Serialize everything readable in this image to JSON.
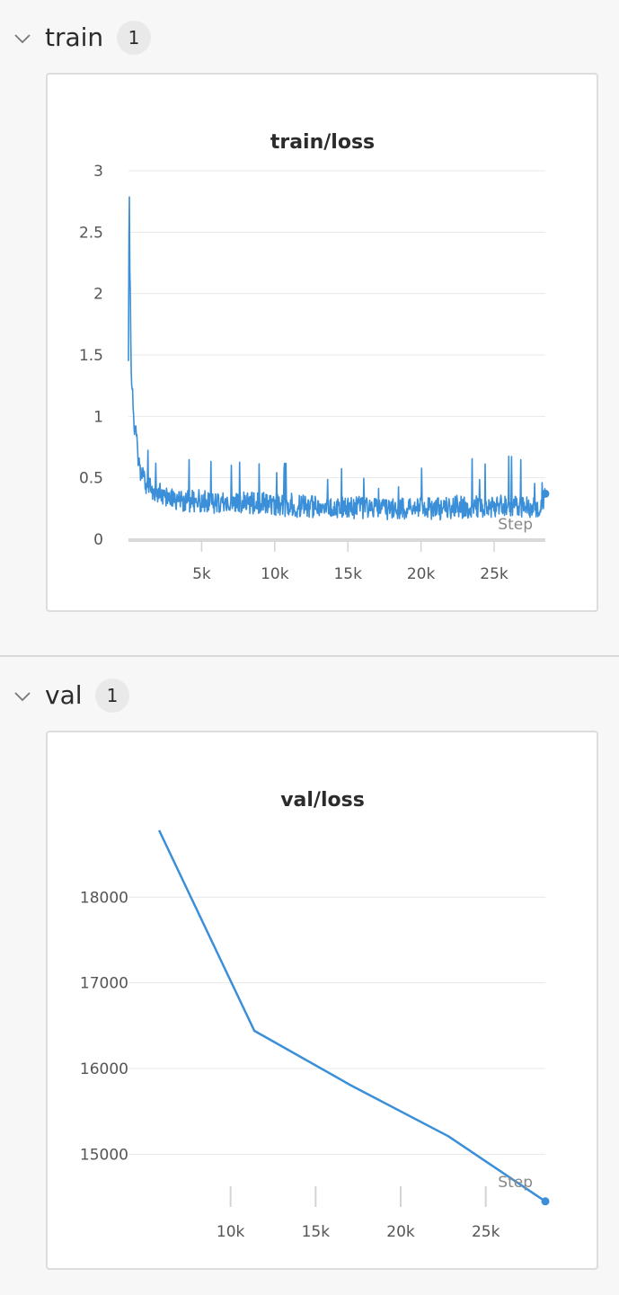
{
  "sections": [
    {
      "title": "train",
      "count": "1"
    },
    {
      "title": "val",
      "count": "1"
    }
  ],
  "chart_data": [
    {
      "type": "line",
      "title": "train/loss",
      "xlabel": "Step",
      "ylabel": "",
      "xlim": [
        0,
        28500
      ],
      "ylim": [
        0,
        3
      ],
      "x_ticks": [
        5000,
        10000,
        15000,
        20000,
        25000
      ],
      "x_tick_labels": [
        "5k",
        "10k",
        "15k",
        "20k",
        "25k"
      ],
      "y_ticks": [
        0,
        0.5,
        1,
        1.5,
        2,
        2.5,
        3
      ],
      "y_tick_labels": [
        "0",
        "0.5",
        "1",
        "1.5",
        "2",
        "2.5",
        "3"
      ],
      "grid": true,
      "color": "#3a8fd8",
      "series": [
        {
          "name": "",
          "x": [
            0,
            50,
            100,
            150,
            200,
            300,
            400,
            500,
            600,
            700,
            800,
            1000,
            1200,
            1400,
            1600,
            1800,
            2000,
            2500,
            3000,
            3500,
            4000,
            4500,
            5000,
            6000,
            7000,
            8000,
            8800,
            9000,
            10000,
            11000,
            12000,
            13000,
            14000,
            15000,
            16000,
            17000,
            18000,
            19000,
            19200,
            20000,
            21000,
            22000,
            22500,
            23000,
            24000,
            25000,
            26000,
            26500,
            27000,
            28000,
            28500
          ],
          "y": [
            1.45,
            3.0,
            2.2,
            1.65,
            1.4,
            1.1,
            0.95,
            0.85,
            0.75,
            0.6,
            0.55,
            0.5,
            0.45,
            0.42,
            0.4,
            0.38,
            0.37,
            0.35,
            0.33,
            0.32,
            0.32,
            0.31,
            0.31,
            0.3,
            0.3,
            0.29,
            0.3,
            0.29,
            0.28,
            0.28,
            0.27,
            0.27,
            0.26,
            0.26,
            0.26,
            0.25,
            0.25,
            0.26,
            0.27,
            0.26,
            0.25,
            0.26,
            0.27,
            0.26,
            0.26,
            0.26,
            0.26,
            0.27,
            0.26,
            0.26,
            0.37
          ]
        }
      ]
    },
    {
      "type": "line",
      "title": "val/loss",
      "xlabel": "Step",
      "ylabel": "",
      "xlim": [
        4000,
        28500
      ],
      "ylim": [
        14500,
        18800
      ],
      "x_ticks": [
        10000,
        15000,
        20000,
        25000
      ],
      "x_tick_labels": [
        "10k",
        "15k",
        "20k",
        "25k"
      ],
      "y_ticks": [
        15000,
        16000,
        17000,
        18000
      ],
      "y_tick_labels": [
        "15000",
        "16000",
        "17000",
        "18000"
      ],
      "grid": true,
      "color": "#3a8fd8",
      "series": [
        {
          "name": "",
          "x": [
            5800,
            11400,
            17100,
            22800,
            28500
          ],
          "y": [
            18780,
            16440,
            15800,
            15210,
            14450
          ]
        }
      ]
    }
  ]
}
